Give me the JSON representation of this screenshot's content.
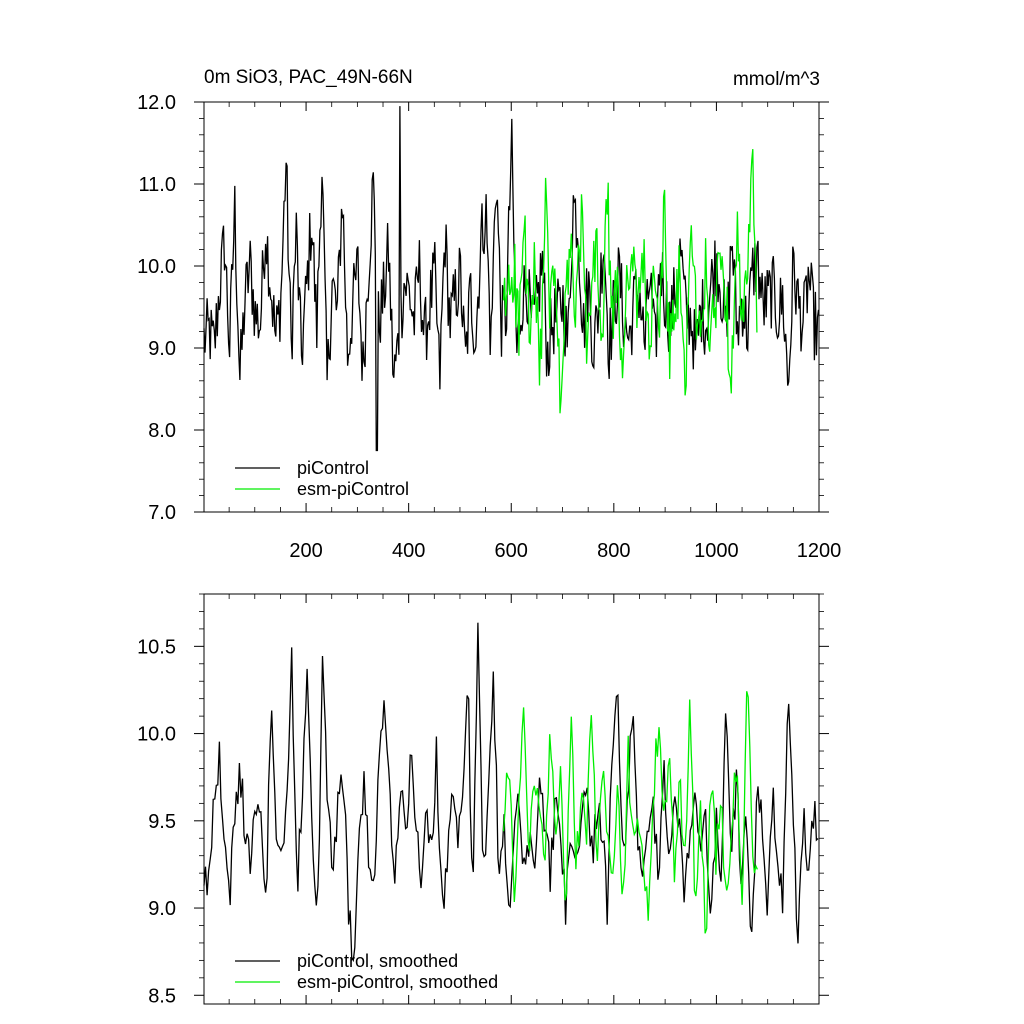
{
  "chart_data": [
    {
      "type": "line",
      "title": "0m SiO3, PAC_49N-66N",
      "units": "mmol/m^3",
      "xlabel": "",
      "ylabel": "",
      "xlim": [
        1,
        1200
      ],
      "ylim": [
        7.0,
        12.0
      ],
      "x_ticks": [
        200,
        400,
        600,
        800,
        1000,
        1200
      ],
      "x_tick_labels": [
        "200",
        "400",
        "600",
        "800",
        "1000",
        "1200"
      ],
      "y_ticks": [
        7.0,
        8.0,
        9.0,
        10.0,
        11.0,
        12.0
      ],
      "y_tick_labels": [
        "7.0",
        "8.0",
        "9.0",
        "10.0",
        "11.0",
        "12.0"
      ],
      "grid": false,
      "legend_position": "bottom-left",
      "series": [
        {
          "name": "piControl",
          "color": "#000000",
          "x_start": 1,
          "x_end": 1200,
          "mean": 9.5,
          "std": 0.55,
          "values": [
            9.1,
            9.2,
            9.0,
            9.7,
            10.3,
            9.0,
            10.7,
            8.6,
            9.6,
            10.0,
            9.4,
            9.3,
            10.5,
            9.8,
            9.1,
            9.6,
            11.3,
            9.0,
            10.4,
            8.9,
            9.7,
            10.6,
            9.2,
            11.3,
            8.5,
            9.8,
            9.4,
            10.9,
            8.9,
            9.5,
            10.0,
            8.7,
            9.9,
            11.0,
            9.3,
            9.6,
            10.2,
            8.6,
            9.1,
            9.8,
            9.7,
            9.3,
            10.0,
            9.1,
            9.5,
            9.9,
            8.6,
            10.4,
            9.3,
            9.6,
            9.9,
            8.8,
            9.7,
            9.1,
            10.3,
            10.7,
            9.0,
            11.2,
            9.3,
            9.4,
            11.5,
            8.9,
            9.6,
            9.8,
            9.2,
            9.5,
            10.1,
            8.9,
            9.3,
            9.4,
            9.6,
            9.0,
            10.8,
            10.5,
            9.2,
            9.8,
            9.0,
            9.5,
            10.4,
            9.0,
            9.5,
            9.9,
            9.3,
            9.1,
            9.6,
            9.7,
            9.0,
            9.9,
            8.9,
            10.1,
            9.6,
            9.3,
            9.7,
            10.2,
            9.4,
            9.4,
            8.9,
            9.5,
            9.3,
            9.8,
            10.1,
            9.7,
            9.1,
            10.4,
            9.2,
            9.6,
            9.2,
            9.9,
            10.1,
            9.5,
            9.6,
            9.7,
            9.4,
            9.6,
            8.5,
            10.0,
            9.5,
            9.3,
            9.9,
            9.3,
            9.2
          ],
          "annotations": {
            "max": [
              383,
              11.95
            ],
            "min": [
              338,
              7.75
            ]
          }
        },
        {
          "name": "esm-piControl",
          "color": "#00ee00",
          "x_start": 585,
          "x_end": 1080,
          "mean": 9.45,
          "std": 0.6,
          "values": [
            9.4,
            9.8,
            10.0,
            9.2,
            10.5,
            9.0,
            9.9,
            8.6,
            10.8,
            9.4,
            10.1,
            8.1,
            9.6,
            10.2,
            9.3,
            10.7,
            9.0,
            9.6,
            10.3,
            8.9,
            10.9,
            9.3,
            9.7,
            8.7,
            10.2,
            9.9,
            9.4,
            10.3,
            8.9,
            9.7,
            9.2,
            10.7,
            9.0,
            9.3,
            9.9,
            8.5,
            10.4,
            9.6,
            9.0,
            10.1,
            8.9,
            9.7,
            10.3,
            9.4,
            8.8,
            10.5,
            9.3,
            9.6,
            11.4,
            8.9
          ]
        }
      ]
    },
    {
      "type": "line",
      "title": "",
      "xlabel": "",
      "ylabel": "",
      "xlim": [
        1,
        1200
      ],
      "ylim": [
        8.45,
        10.8
      ],
      "x_ticks": [
        200,
        400,
        600,
        800,
        1000,
        1200
      ],
      "y_ticks": [
        8.5,
        9.0,
        9.5,
        10.0,
        10.5
      ],
      "y_tick_labels": [
        "8.5",
        "9.0",
        "9.5",
        "10.0",
        "10.5"
      ],
      "grid": false,
      "legend_position": "bottom-left",
      "series": [
        {
          "name": "piControl, smoothed",
          "color": "#000000",
          "x_start": 1,
          "x_end": 1200,
          "values": [
            9.1,
            9.2,
            9.6,
            9.9,
            9.3,
            9.1,
            9.5,
            9.8,
            9.4,
            9.3,
            9.5,
            9.6,
            9.0,
            10.3,
            9.4,
            9.2,
            9.7,
            10.4,
            9.1,
            9.6,
            10.45,
            9.3,
            9.0,
            10.45,
            9.5,
            9.2,
            9.6,
            9.8,
            9.0,
            8.55,
            9.5,
            9.7,
            9.2,
            9.1,
            10.0,
            10.1,
            9.6,
            9.2,
            9.7,
            9.4,
            9.9,
            9.5,
            9.1,
            9.6,
            9.3,
            9.9,
            9.0,
            9.2,
            9.7,
            9.4,
            9.5,
            10.4,
            9.0,
            10.6,
            9.1,
            9.6,
            10.4,
            9.2,
            9.5,
            9.0,
            9.5,
            9.6,
            9.2,
            9.4,
            9.3,
            9.8,
            9.5,
            9.2,
            9.6,
            9.4,
            9.0,
            9.5,
            9.2,
            9.6,
            9.7,
            9.3,
            9.5,
            9.5,
            9.0,
            10.0,
            10.2,
            9.3,
            9.6,
            10.2,
            9.4,
            9.2,
            9.5,
            9.6,
            9.1,
            9.8,
            9.3,
            9.7,
            9.5,
            9.0,
            9.4,
            9.7,
            9.3,
            9.6,
            8.9,
            9.5,
            9.2,
            10.1,
            9.3,
            9.7,
            9.2,
            9.5,
            8.8,
            9.6,
            9.5,
            9.0,
            9.7,
            9.3,
            9.0,
            10.3,
            9.5,
            8.8,
            9.6,
            9.2,
            9.5,
            9.5
          ]
        },
        {
          "name": "esm-piControl, smoothed",
          "color": "#00ee00",
          "x_start": 585,
          "x_end": 1080,
          "values": [
            9.4,
            9.9,
            9.1,
            9.6,
            10.1,
            9.3,
            9.8,
            9.6,
            9.2,
            10.0,
            9.5,
            9.7,
            9.0,
            10.1,
            9.3,
            9.6,
            9.4,
            10.25,
            9.2,
            9.8,
            9.5,
            9.1,
            9.7,
            8.9,
            9.9,
            9.4,
            9.6,
            9.2,
            8.9,
            9.7,
            10.1,
            9.5,
            9.8,
            9.2,
            9.7,
            9.3,
            10.2,
            9.0,
            9.6,
            8.8,
            9.8,
            9.3,
            9.6,
            9.0,
            9.5,
            9.9,
            8.9,
            10.3,
            9.4,
            9.2
          ]
        }
      ]
    }
  ]
}
